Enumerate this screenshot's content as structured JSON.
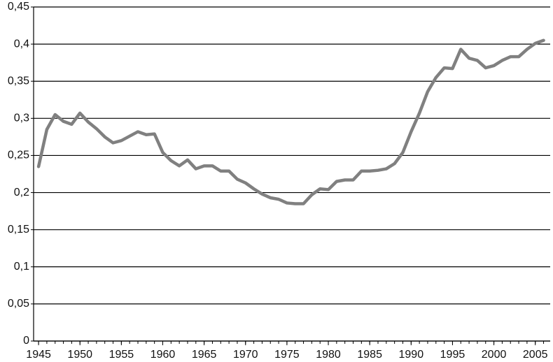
{
  "chart_data": {
    "type": "line",
    "x": [
      1945,
      1946,
      1947,
      1948,
      1949,
      1950,
      1951,
      1952,
      1953,
      1954,
      1955,
      1956,
      1957,
      1958,
      1959,
      1960,
      1961,
      1962,
      1963,
      1964,
      1965,
      1966,
      1967,
      1968,
      1969,
      1970,
      1971,
      1972,
      1973,
      1974,
      1975,
      1976,
      1977,
      1978,
      1979,
      1980,
      1981,
      1982,
      1983,
      1984,
      1985,
      1986,
      1987,
      1988,
      1989,
      1990,
      1991,
      1992,
      1993,
      1994,
      1995,
      1996,
      1997,
      1998,
      1999,
      2000,
      2001,
      2002,
      2003,
      2004,
      2005,
      2006
    ],
    "series": [
      {
        "color": "#808080",
        "values": [
          0.235,
          0.285,
          0.305,
          0.296,
          0.292,
          0.307,
          0.295,
          0.286,
          0.275,
          0.267,
          0.27,
          0.276,
          0.282,
          0.278,
          0.279,
          0.254,
          0.243,
          0.236,
          0.244,
          0.232,
          0.236,
          0.236,
          0.229,
          0.229,
          0.218,
          0.213,
          0.205,
          0.198,
          0.193,
          0.191,
          0.186,
          0.185,
          0.185,
          0.197,
          0.205,
          0.204,
          0.215,
          0.217,
          0.217,
          0.229,
          0.229,
          0.23,
          0.232,
          0.239,
          0.254,
          0.282,
          0.307,
          0.336,
          0.355,
          0.368,
          0.367,
          0.393,
          0.381,
          0.378,
          0.368,
          0.371,
          0.378,
          0.383,
          0.383,
          0.393,
          0.401,
          0.405
        ]
      }
    ],
    "xlim": [
      1944.4,
      2006.8
    ],
    "xticks": [
      1945,
      1950,
      1955,
      1960,
      1965,
      1970,
      1975,
      1980,
      1985,
      1990,
      1995,
      2000,
      2005
    ],
    "ylim": [
      0,
      0.45
    ],
    "yticks": [
      0,
      {
        "value": 0.05,
        "label": "0,05"
      },
      {
        "value": 0.1,
        "label": "0,1"
      },
      {
        "value": 0.15,
        "label": "0,15"
      },
      {
        "value": 0.2,
        "label": "0,2"
      },
      {
        "value": 0.25,
        "label": "0,25"
      },
      {
        "value": 0.3,
        "label": "0,3"
      },
      {
        "value": 0.35,
        "label": "0,35"
      },
      {
        "value": 0.4,
        "label": "0,4"
      },
      {
        "value": 0.45,
        "label": "0,45"
      }
    ],
    "grid": true
  }
}
